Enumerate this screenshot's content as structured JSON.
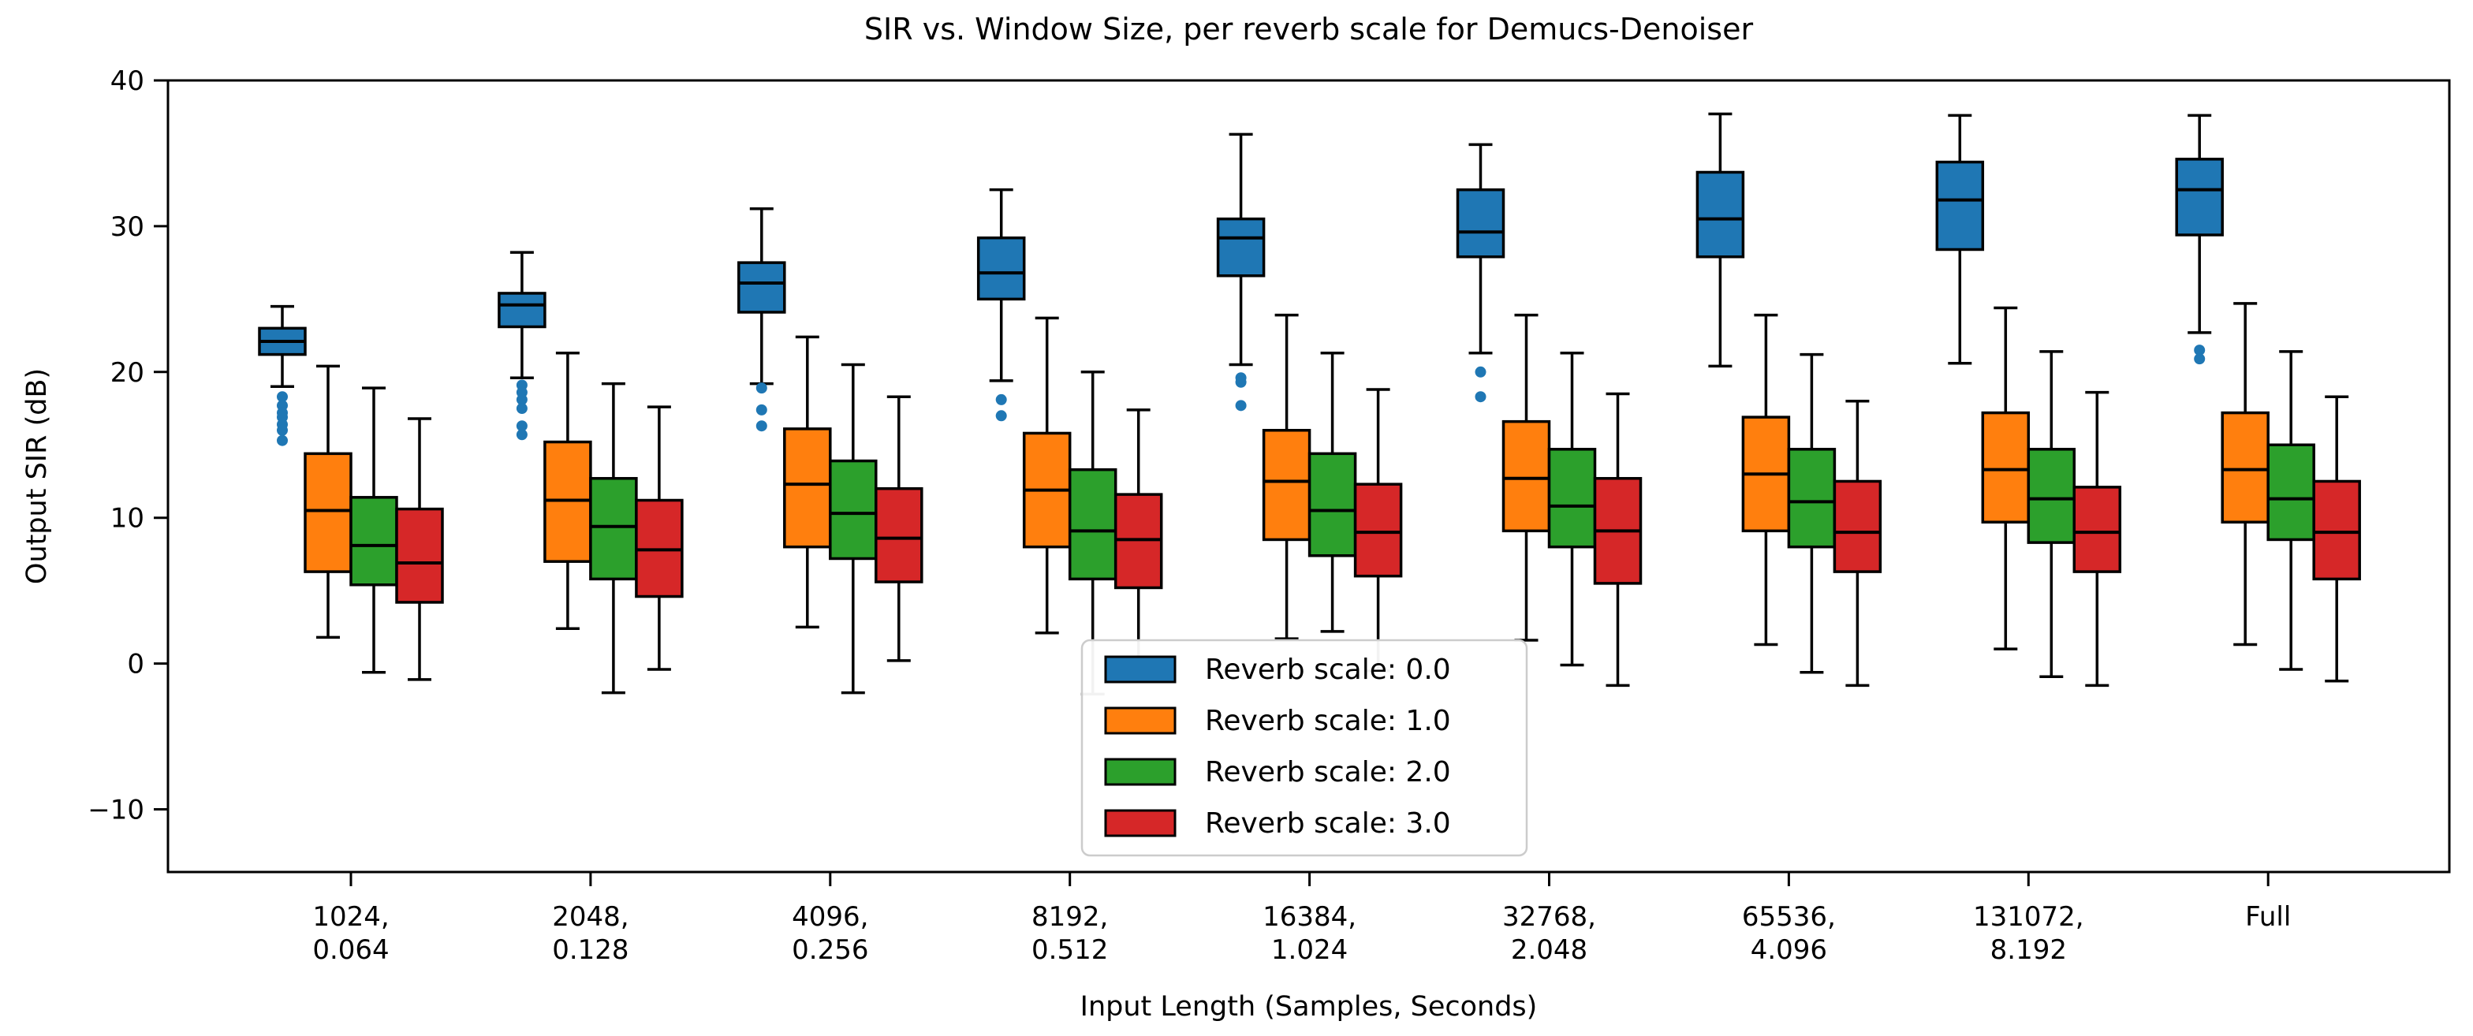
{
  "chart_data": {
    "type": "boxplot",
    "title": "SIR vs. Window Size, per reverb scale for Demucs-Denoiser",
    "xlabel": "Input Length (Samples, Seconds)",
    "ylabel": "Output SIR (dB)",
    "ylim": [
      -14.3,
      40
    ],
    "yticks": [
      40,
      30,
      20,
      10,
      0,
      -10
    ],
    "grid": false,
    "legend_position": "lower center inside plot",
    "categories": [
      [
        "1024,",
        "0.064"
      ],
      [
        "2048,",
        "0.128"
      ],
      [
        "4096,",
        "0.256"
      ],
      [
        "8192,",
        "0.512"
      ],
      [
        "16384,",
        "1.024"
      ],
      [
        "32768,",
        "2.048"
      ],
      [
        "65536,",
        "4.096"
      ],
      [
        "131072,",
        "8.192"
      ],
      [
        "Full"
      ]
    ],
    "series": [
      {
        "name": "Reverb scale: 0.0",
        "color": "#1f77b4",
        "boxes": [
          {
            "whislo": 19.0,
            "q1": 21.2,
            "med": 22.1,
            "q3": 23.0,
            "whishi": 24.5,
            "fliers": [
              18.3,
              17.7,
              17.2,
              16.9,
              16.4,
              16.0,
              15.3
            ]
          },
          {
            "whislo": 19.6,
            "q1": 23.1,
            "med": 24.6,
            "q3": 25.4,
            "whishi": 28.2,
            "fliers": [
              19.1,
              18.6,
              18.1,
              17.5,
              16.3,
              15.7
            ]
          },
          {
            "whislo": 19.2,
            "q1": 24.1,
            "med": 26.1,
            "q3": 27.5,
            "whishi": 31.2,
            "fliers": [
              18.9,
              17.4,
              16.3
            ]
          },
          {
            "whislo": 19.4,
            "q1": 25.0,
            "med": 26.8,
            "q3": 29.2,
            "whishi": 32.5,
            "fliers": [
              18.1,
              17.0
            ]
          },
          {
            "whislo": 20.5,
            "q1": 26.6,
            "med": 29.2,
            "q3": 30.5,
            "whishi": 36.3,
            "fliers": [
              19.6,
              19.3,
              17.7
            ]
          },
          {
            "whislo": 21.3,
            "q1": 27.9,
            "med": 29.6,
            "q3": 32.5,
            "whishi": 35.6,
            "fliers": [
              20.0,
              18.3
            ]
          },
          {
            "whislo": 20.4,
            "q1": 27.9,
            "med": 30.5,
            "q3": 33.7,
            "whishi": 37.7,
            "fliers": []
          },
          {
            "whislo": 20.6,
            "q1": 28.4,
            "med": 31.8,
            "q3": 34.4,
            "whishi": 37.6,
            "fliers": []
          },
          {
            "whislo": 22.7,
            "q1": 29.4,
            "med": 32.5,
            "q3": 34.6,
            "whishi": 37.6,
            "fliers": [
              21.5,
              20.9
            ]
          }
        ]
      },
      {
        "name": "Reverb scale: 1.0",
        "color": "#ff7f0e",
        "boxes": [
          {
            "whislo": 1.8,
            "q1": 6.3,
            "med": 10.5,
            "q3": 14.4,
            "whishi": 20.4,
            "fliers": []
          },
          {
            "whislo": 2.4,
            "q1": 7.0,
            "med": 11.2,
            "q3": 15.2,
            "whishi": 21.3,
            "fliers": []
          },
          {
            "whislo": 2.5,
            "q1": 8.0,
            "med": 12.3,
            "q3": 16.1,
            "whishi": 22.4,
            "fliers": []
          },
          {
            "whislo": 2.1,
            "q1": 8.0,
            "med": 11.9,
            "q3": 15.8,
            "whishi": 23.7,
            "fliers": []
          },
          {
            "whislo": 1.7,
            "q1": 8.5,
            "med": 12.5,
            "q3": 16.0,
            "whishi": 23.9,
            "fliers": []
          },
          {
            "whislo": 1.6,
            "q1": 9.1,
            "med": 12.7,
            "q3": 16.6,
            "whishi": 23.9,
            "fliers": []
          },
          {
            "whislo": 1.3,
            "q1": 9.1,
            "med": 13.0,
            "q3": 16.9,
            "whishi": 23.9,
            "fliers": []
          },
          {
            "whislo": 1.0,
            "q1": 9.7,
            "med": 13.3,
            "q3": 17.2,
            "whishi": 24.4,
            "fliers": []
          },
          {
            "whislo": 1.3,
            "q1": 9.7,
            "med": 13.3,
            "q3": 17.2,
            "whishi": 24.7,
            "fliers": []
          }
        ]
      },
      {
        "name": "Reverb scale: 2.0",
        "color": "#2ca02c",
        "boxes": [
          {
            "whislo": -0.6,
            "q1": 5.4,
            "med": 8.1,
            "q3": 11.4,
            "whishi": 18.9,
            "fliers": []
          },
          {
            "whislo": -2.0,
            "q1": 5.8,
            "med": 9.4,
            "q3": 12.7,
            "whishi": 19.2,
            "fliers": []
          },
          {
            "whislo": -2.0,
            "q1": 7.2,
            "med": 10.3,
            "q3": 13.9,
            "whishi": 20.5,
            "fliers": []
          },
          {
            "whislo": -2.1,
            "q1": 5.8,
            "med": 9.1,
            "q3": 13.3,
            "whishi": 20.0,
            "fliers": []
          },
          {
            "whislo": 2.2,
            "q1": 7.4,
            "med": 10.5,
            "q3": 14.4,
            "whishi": 21.3,
            "fliers": []
          },
          {
            "whislo": -0.1,
            "q1": 8.0,
            "med": 10.8,
            "q3": 14.7,
            "whishi": 21.3,
            "fliers": []
          },
          {
            "whislo": -0.6,
            "q1": 8.0,
            "med": 11.1,
            "q3": 14.7,
            "whishi": 21.2,
            "fliers": []
          },
          {
            "whislo": -0.9,
            "q1": 8.3,
            "med": 11.3,
            "q3": 14.7,
            "whishi": 21.4,
            "fliers": []
          },
          {
            "whislo": -0.4,
            "q1": 8.5,
            "med": 11.3,
            "q3": 15.0,
            "whishi": 21.4,
            "fliers": []
          }
        ]
      },
      {
        "name": "Reverb scale: 3.0",
        "color": "#d62728",
        "boxes": [
          {
            "whislo": -1.1,
            "q1": 4.2,
            "med": 6.9,
            "q3": 10.6,
            "whishi": 16.8,
            "fliers": []
          },
          {
            "whislo": -0.4,
            "q1": 4.6,
            "med": 7.8,
            "q3": 11.2,
            "whishi": 17.6,
            "fliers": []
          },
          {
            "whislo": 0.2,
            "q1": 5.6,
            "med": 8.6,
            "q3": 12.0,
            "whishi": 18.3,
            "fliers": []
          },
          {
            "whislo": -0.5,
            "q1": 5.2,
            "med": 8.5,
            "q3": 11.6,
            "whishi": 17.4,
            "fliers": []
          },
          {
            "whislo": -0.5,
            "q1": 6.0,
            "med": 9.0,
            "q3": 12.3,
            "whishi": 18.8,
            "fliers": []
          },
          {
            "whislo": -1.5,
            "q1": 5.5,
            "med": 9.1,
            "q3": 12.7,
            "whishi": 18.5,
            "fliers": []
          },
          {
            "whislo": -1.5,
            "q1": 6.3,
            "med": 9.0,
            "q3": 12.5,
            "whishi": 18.0,
            "fliers": []
          },
          {
            "whislo": -1.5,
            "q1": 6.3,
            "med": 9.0,
            "q3": 12.1,
            "whishi": 18.6,
            "fliers": []
          },
          {
            "whislo": -1.2,
            "q1": 5.8,
            "med": 9.0,
            "q3": 12.5,
            "whishi": 18.3,
            "fliers": []
          }
        ]
      }
    ],
    "legend_entries": [
      {
        "label": "Reverb scale: 0.0",
        "color": "#1f77b4"
      },
      {
        "label": "Reverb scale: 1.0",
        "color": "#ff7f0e"
      },
      {
        "label": "Reverb scale: 2.0",
        "color": "#2ca02c"
      },
      {
        "label": "Reverb scale: 3.0",
        "color": "#d62728"
      }
    ],
    "colors": {
      "axes": "#000000",
      "background": "#ffffff",
      "legend_border": "#cccccc"
    }
  }
}
